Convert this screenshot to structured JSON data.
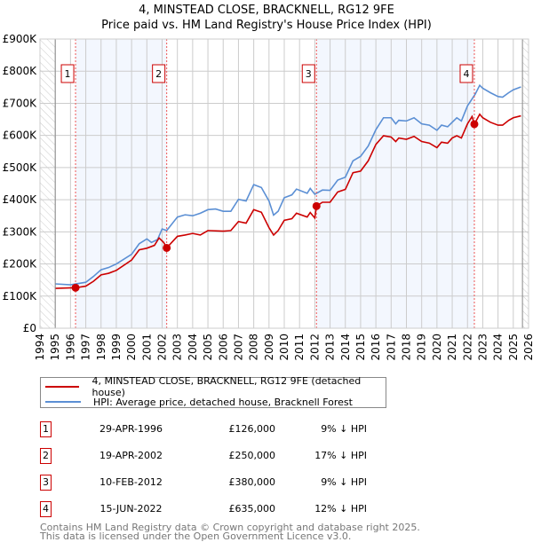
{
  "chart_data": {
    "type": "line",
    "title": "4, MINSTEAD CLOSE, BRACKNELL, RG12 9FE",
    "subtitle": "Price paid vs. HM Land Registry's House Price Index (HPI)",
    "xlim": [
      1994,
      2026
    ],
    "ylim": [
      0,
      900000
    ],
    "x_ticks": [
      "1994",
      "1995",
      "1996",
      "1997",
      "1998",
      "1999",
      "2000",
      "2001",
      "2002",
      "2003",
      "2004",
      "2005",
      "2006",
      "2007",
      "2008",
      "2009",
      "2010",
      "2011",
      "2012",
      "2013",
      "2014",
      "2015",
      "2016",
      "2017",
      "2018",
      "2019",
      "2020",
      "2021",
      "2022",
      "2023",
      "2024",
      "2025",
      "2026"
    ],
    "y_ticks": [
      {
        "value": 0,
        "label": "£0"
      },
      {
        "value": 100000,
        "label": "£100K"
      },
      {
        "value": 200000,
        "label": "£200K"
      },
      {
        "value": 300000,
        "label": "£300K"
      },
      {
        "value": 400000,
        "label": "£400K"
      },
      {
        "value": 500000,
        "label": "£500K"
      },
      {
        "value": 600000,
        "label": "£600K"
      },
      {
        "value": 700000,
        "label": "£700K"
      },
      {
        "value": 800000,
        "label": "£800K"
      },
      {
        "value": 900000,
        "label": "£900K"
      }
    ],
    "grid": true,
    "series": [
      {
        "name": "4, MINSTEAD CLOSE, BRACKNELL, RG12 9FE (detached house)",
        "color": "#cc0000",
        "x": [
          1995,
          1996.33,
          1997,
          1997.5,
          1998,
          1998.5,
          1999,
          2000,
          2000.5,
          2001,
          2001.5,
          2001.8,
          2002.1,
          2002.3,
          2003,
          2003.5,
          2004,
          2004.5,
          2005,
          2006,
          2006.5,
          2007,
          2007.5,
          2008,
          2008.5,
          2009,
          2009.3,
          2009.6,
          2010,
          2010.5,
          2010.8,
          2011.5,
          2011.7,
          2012.0,
          2012.11,
          2012.5,
          2013,
          2013.5,
          2014,
          2014.5,
          2015,
          2015.5,
          2016,
          2016.5,
          2017,
          2017.3,
          2017.5,
          2018,
          2018.5,
          2019,
          2019.5,
          2020,
          2020.3,
          2020.7,
          2021,
          2021.3,
          2021.6,
          2022,
          2022.3,
          2022.45,
          2022.8,
          2023,
          2023.5,
          2024,
          2024.3,
          2024.7,
          2025,
          2025.5
        ],
        "y": [
          124,
          126,
          131,
          146,
          166,
          171,
          180,
          212,
          244,
          249,
          258,
          281,
          267,
          250,
          286,
          290,
          295,
          290,
          304,
          302,
          304,
          332,
          327,
          369,
          361,
          313,
          290,
          304,
          336,
          341,
          358,
          346,
          360,
          343,
          380,
          392,
          392,
          424,
          432,
          484,
          489,
          521,
          572,
          599,
          595,
          581,
          592,
          588,
          597,
          581,
          576,
          562,
          579,
          576,
          592,
          599,
          592,
          636,
          659,
          635,
          666,
          655,
          641,
          632,
          632,
          647,
          655,
          661
        ],
        "y_unit": "£K"
      },
      {
        "name": "HPI: Average price, detached house, Bracknell Forest",
        "color": "#5b8fd4",
        "x": [
          1995,
          1996,
          1997,
          1997.5,
          1998,
          1998.5,
          1999,
          2000,
          2000.5,
          2001,
          2001.3,
          2001.7,
          2002,
          2002.3,
          2003,
          2003.5,
          2004,
          2004.5,
          2005,
          2005.5,
          2006,
          2006.5,
          2007,
          2007.5,
          2008,
          2008.5,
          2009,
          2009.3,
          2009.6,
          2010,
          2010.5,
          2010.8,
          2011.5,
          2011.7,
          2012,
          2012.5,
          2013,
          2013.5,
          2014,
          2014.5,
          2015,
          2015.5,
          2016,
          2016.5,
          2017,
          2017.3,
          2017.5,
          2018,
          2018.5,
          2019,
          2019.5,
          2020,
          2020.3,
          2020.7,
          2021,
          2021.3,
          2021.6,
          2022,
          2022.5,
          2022.8,
          2023,
          2023.5,
          2024,
          2024.3,
          2024.7,
          2025,
          2025.5
        ],
        "y": [
          138,
          135,
          143,
          161,
          182,
          189,
          200,
          230,
          263,
          278,
          267,
          276,
          309,
          304,
          346,
          353,
          350,
          358,
          369,
          371,
          364,
          364,
          401,
          396,
          447,
          438,
          396,
          352,
          364,
          406,
          415,
          433,
          420,
          435,
          417,
          430,
          429,
          461,
          470,
          521,
          535,
          567,
          618,
          655,
          655,
          636,
          647,
          645,
          655,
          636,
          632,
          616,
          632,
          627,
          641,
          655,
          645,
          692,
          728,
          756,
          747,
          733,
          721,
          719,
          733,
          742,
          751
        ],
        "y_unit": "£K"
      }
    ],
    "sales": [
      {
        "id": "1",
        "x": 1996.33,
        "y": 126,
        "date": "29-APR-1996",
        "price": "£126,000",
        "pct": "9% ↓ HPI"
      },
      {
        "id": "2",
        "x": 2002.3,
        "y": 250,
        "date": "19-APR-2002",
        "price": "£250,000",
        "pct": "17% ↓ HPI"
      },
      {
        "id": "3",
        "x": 2012.11,
        "y": 380,
        "date": "10-FEB-2012",
        "price": "£380,000",
        "pct": "9% ↓ HPI"
      },
      {
        "id": "4",
        "x": 2022.45,
        "y": 635,
        "date": "15-JUN-2022",
        "price": "£635,000",
        "pct": "12% ↓ HPI"
      }
    ],
    "shaded_ranges": [
      [
        1996.33,
        2002.3
      ],
      [
        2012.11,
        2022.45
      ]
    ],
    "hatched_ranges": [
      [
        1994,
        1995
      ],
      [
        2025.6,
        2026
      ]
    ],
    "legend_placement": "below"
  },
  "footer": {
    "line1": "Contains HM Land Registry data © Crown copyright and database right 2025.",
    "line2": "This data is licensed under the Open Government Licence v3.0."
  }
}
